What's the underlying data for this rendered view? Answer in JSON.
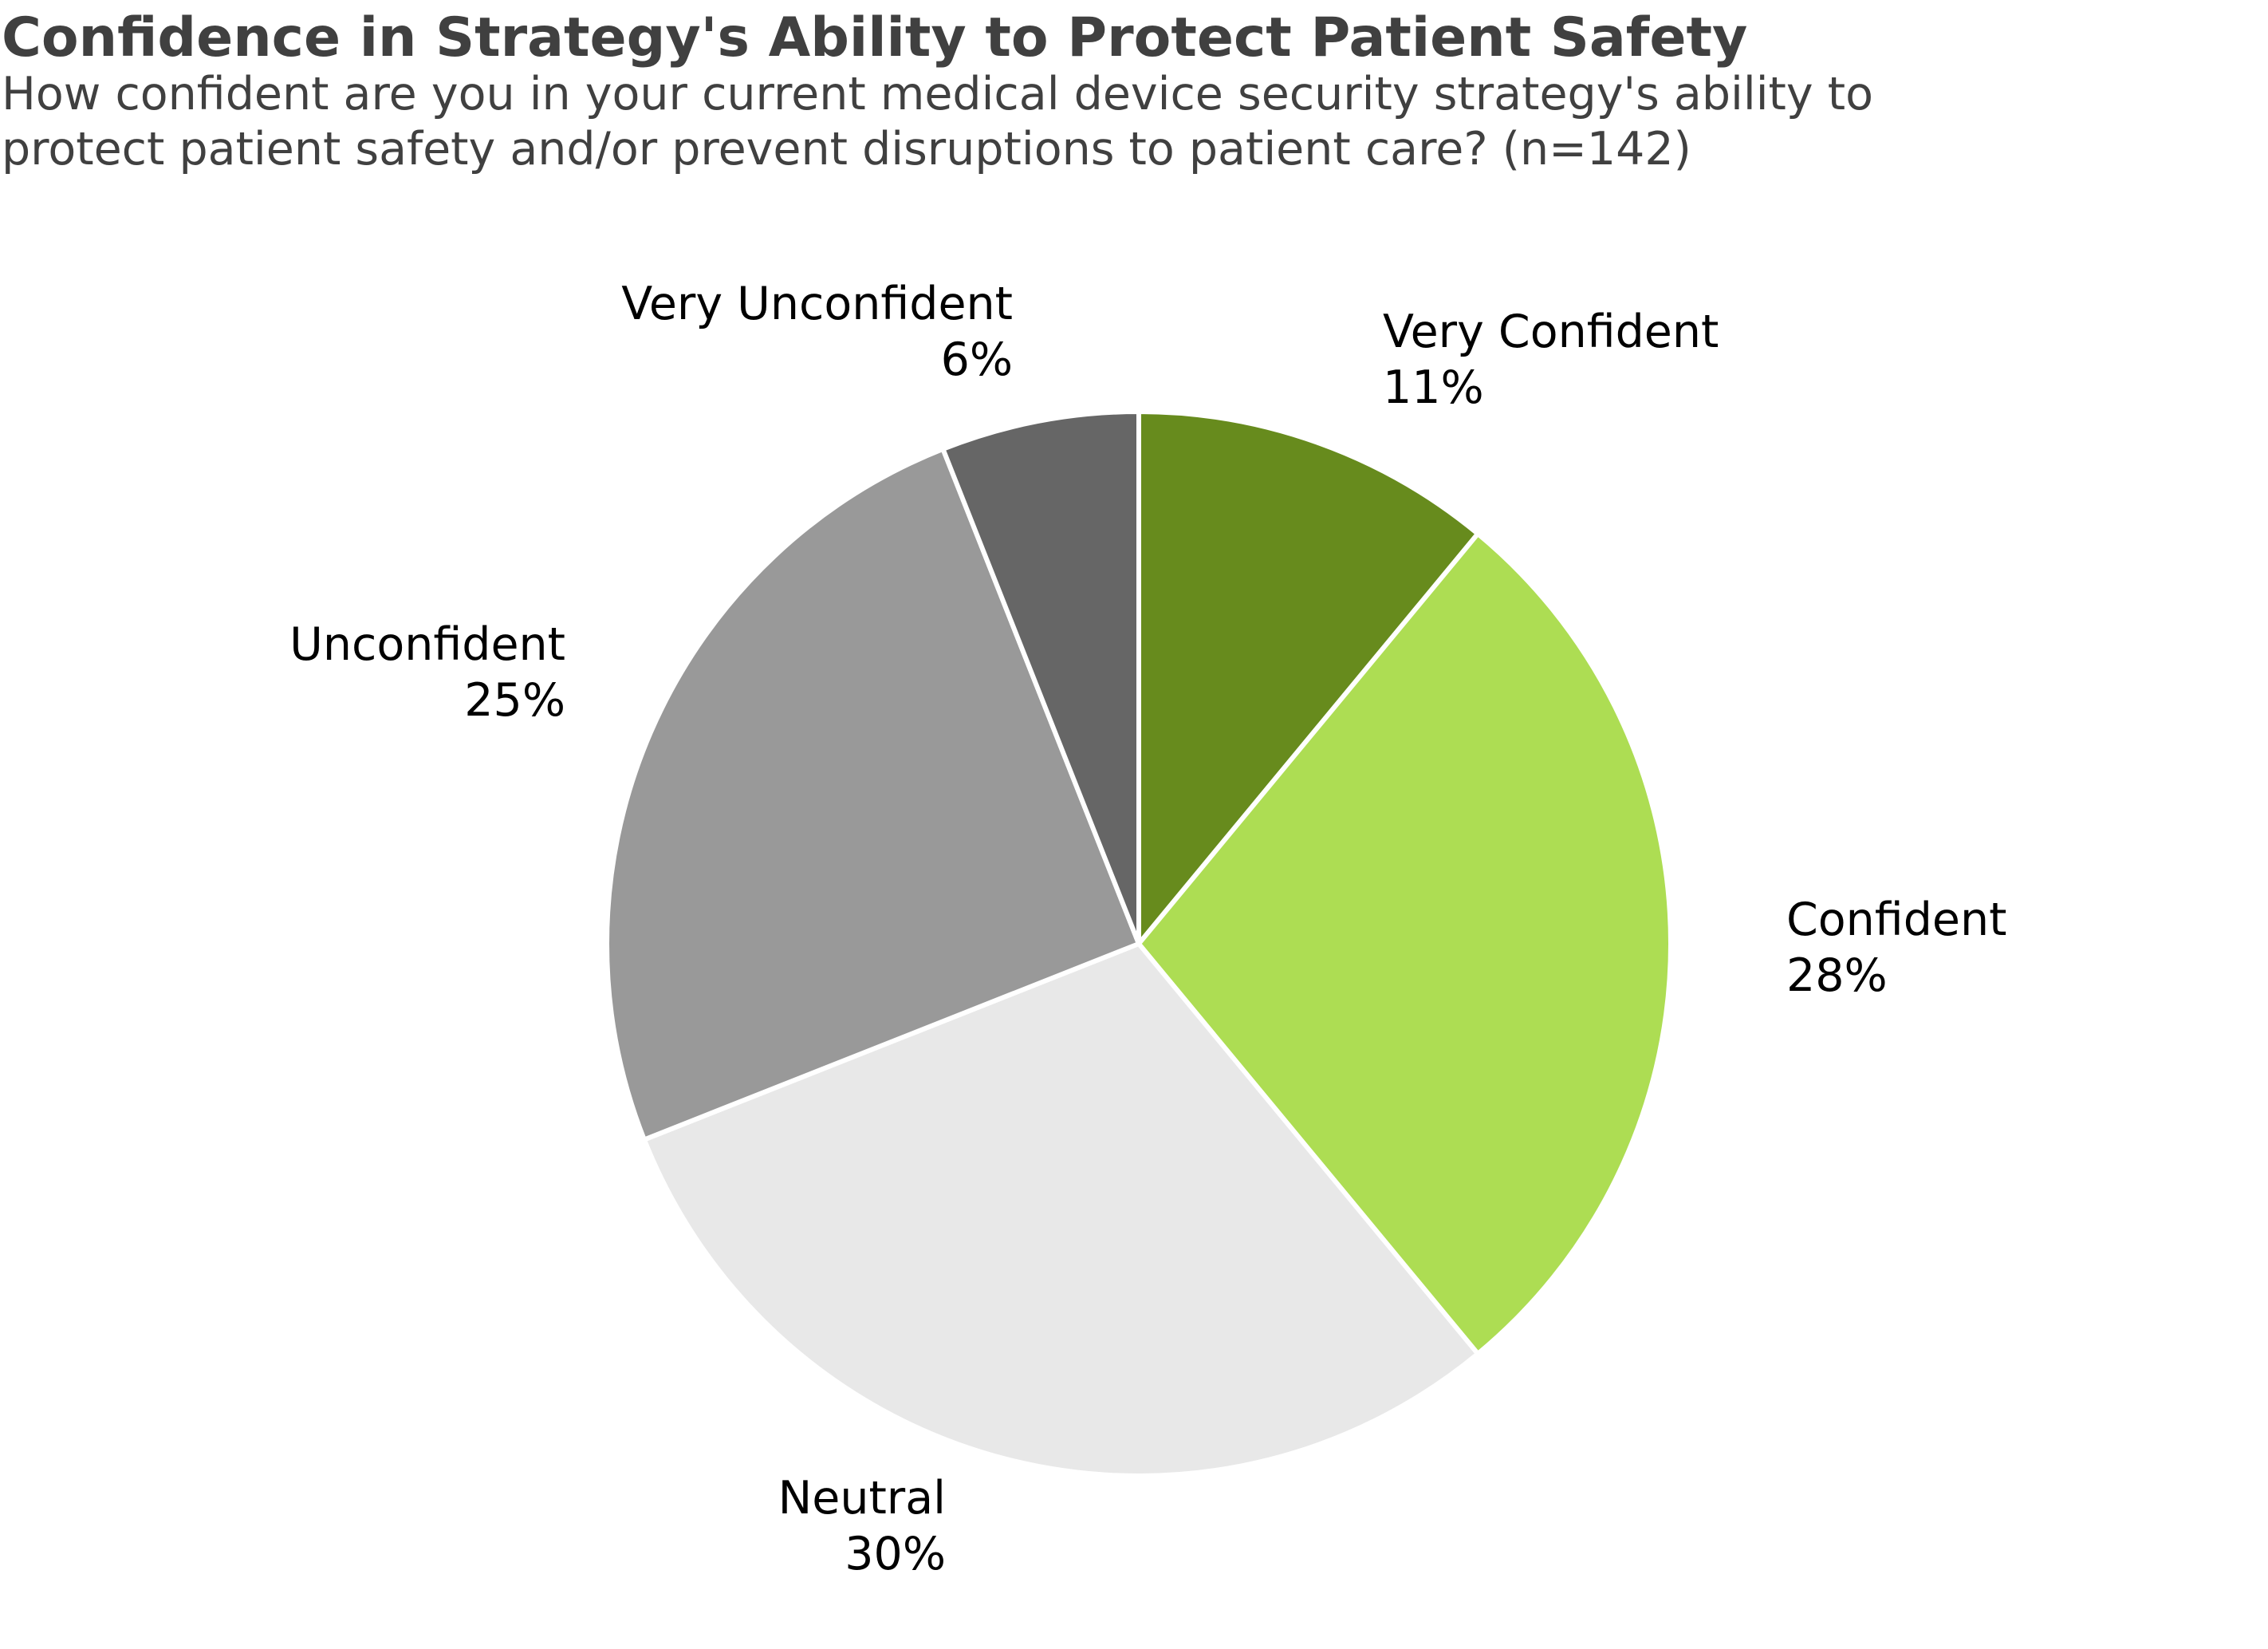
{
  "chart_data": {
    "type": "pie",
    "title": "Confidence in Strategy's Ability to Protect Patient Safety",
    "subtitle_lines": [
      "How confident are you in your current medical device security strategy's ability to",
      "protect patient safety and/or prevent disruptions to patient care? (n=142)"
    ],
    "slices": [
      {
        "label": "Very Confident",
        "value": 11,
        "value_label": "11%",
        "color": "#678b1d"
      },
      {
        "label": "Confident",
        "value": 28,
        "value_label": "28%",
        "color": "#addd53"
      },
      {
        "label": "Neutral",
        "value": 30,
        "value_label": "30%",
        "color": "#e8e8e8"
      },
      {
        "label": "Unconfident",
        "value": 25,
        "value_label": "25%",
        "color": "#999999"
      },
      {
        "label": "Very Unconfident",
        "value": 6,
        "value_label": "6%",
        "color": "#666666"
      }
    ],
    "start": "12 o'clock",
    "direction": "clockwise",
    "slice_border_color": "#ffffff",
    "legend": "none"
  }
}
